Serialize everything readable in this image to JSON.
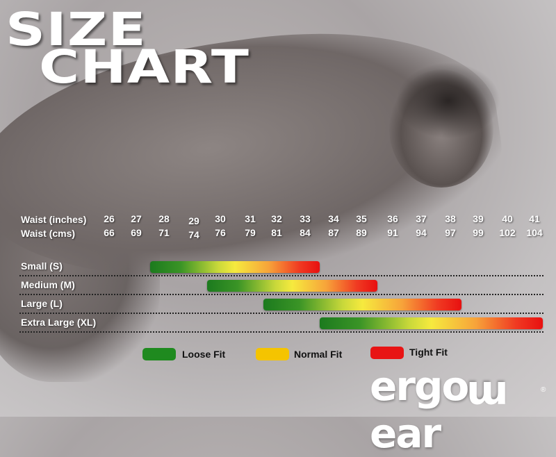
{
  "title": {
    "line1": "SIZE",
    "line2": "CHART"
  },
  "rows": {
    "inches_label": "Waist (inches)",
    "cms_label": "Waist (cms)"
  },
  "chart_data": {
    "type": "table",
    "title": "SIZE CHART",
    "waist_inches": [
      "26",
      "27",
      "28",
      "29",
      "30",
      "31",
      "32",
      "33",
      "34",
      "35",
      "36",
      "37",
      "38",
      "39",
      "40",
      "41"
    ],
    "waist_cms": [
      "66",
      "69",
      "71",
      "74",
      "76",
      "79",
      "81",
      "84",
      "87",
      "89",
      "91",
      "94",
      "97",
      "99",
      "102",
      "104"
    ],
    "sizes": [
      {
        "label": "Small (S)",
        "range_inches": [
          27.5,
          33.5
        ]
      },
      {
        "label": "Medium (M)",
        "range_inches": [
          29.5,
          35.5
        ]
      },
      {
        "label": "Large (L)",
        "range_inches": [
          31.5,
          38.4
        ]
      },
      {
        "label": "Extra Large (XL)",
        "range_inches": [
          33.5,
          41.3
        ]
      }
    ],
    "legend": [
      {
        "label": "Loose Fit",
        "color": "#1f8a1f"
      },
      {
        "label": "Normal Fit",
        "color": "#f5c400"
      },
      {
        "label": "Tight Fit",
        "color": "#e81414"
      }
    ],
    "legend_placement": "bottom"
  },
  "brand": {
    "logo": "ergowear",
    "registered": "®"
  }
}
